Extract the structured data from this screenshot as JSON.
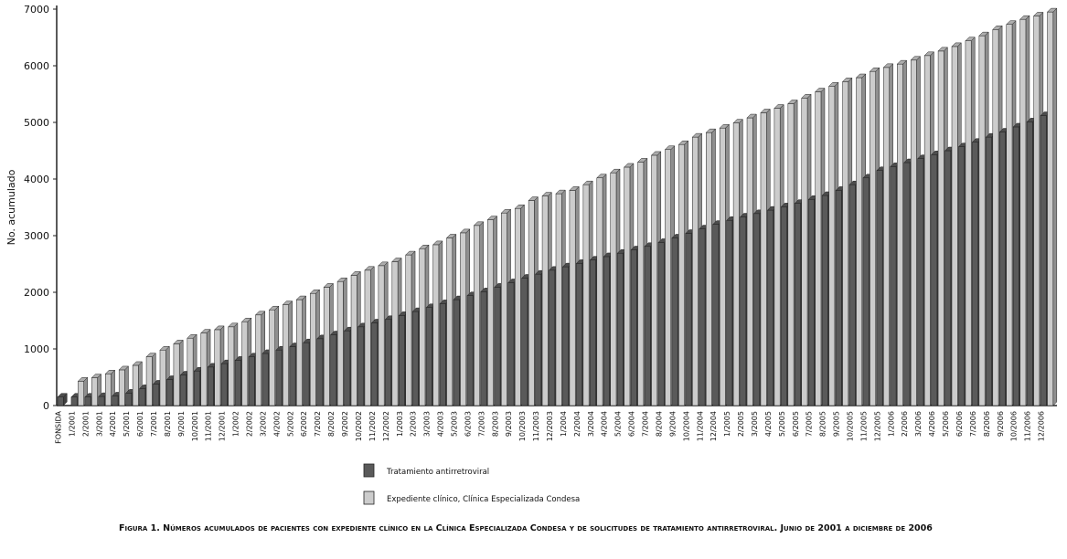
{
  "chart_data": {
    "type": "bar3d",
    "ylabel": "No. acumulado",
    "caption": "Figura 1. Números acumulados de pacientes con expediente clínico en la Clínica Especializada Condesa y de solicitudes de tratamiento antirretroviral. Junio de 2001 a diciembre de 2006",
    "categories": [
      "FONSIDA",
      "1/2001",
      "2/2001",
      "3/2001",
      "4/2001",
      "5/2001",
      "6/2001",
      "7/2001",
      "8/2001",
      "9/2001",
      "10/2001",
      "11/2001",
      "12/2001",
      "1/2002",
      "2/2002",
      "3/2002",
      "4/2002",
      "5/2002",
      "6/2002",
      "7/2002",
      "8/2002",
      "9/2002",
      "10/2002",
      "11/2002",
      "12/2002",
      "1/2003",
      "2/2003",
      "3/2003",
      "4/2003",
      "5/2003",
      "6/2003",
      "7/2003",
      "8/2003",
      "9/2003",
      "10/2003",
      "11/2003",
      "12/2003",
      "1/2004",
      "2/2004",
      "3/2004",
      "4/2004",
      "5/2004",
      "6/2004",
      "7/2004",
      "8/2004",
      "9/2004",
      "10/2004",
      "11/2004",
      "12/2004",
      "1/2005",
      "2/2005",
      "3/2005",
      "4/2005",
      "5/2005",
      "6/2005",
      "7/2005",
      "8/2005",
      "9/2005",
      "10/2005",
      "11/2005",
      "12/2005",
      "1/2006",
      "2/2006",
      "3/2006",
      "4/2006",
      "5/2006",
      "6/2006",
      "7/2006",
      "8/2006",
      "9/2006",
      "10/2006",
      "11/2006",
      "12/2006"
    ],
    "series": [
      {
        "name": "Tratamiento antirretroviral",
        "color": "#5a5a5a",
        "values": [
          150,
          150,
          150,
          160,
          170,
          220,
          300,
          380,
          460,
          540,
          610,
          680,
          740,
          800,
          860,
          920,
          980,
          1040,
          1110,
          1180,
          1250,
          1320,
          1390,
          1460,
          1520,
          1590,
          1660,
          1730,
          1800,
          1870,
          1940,
          2010,
          2090,
          2170,
          2250,
          2320,
          2390,
          2450,
          2510,
          2570,
          2630,
          2690,
          2750,
          2810,
          2880,
          2960,
          3040,
          3120,
          3200,
          3270,
          3330,
          3390,
          3450,
          3510,
          3570,
          3640,
          3710,
          3800,
          3900,
          4020,
          4150,
          4220,
          4290,
          4360,
          4430,
          4500,
          4570,
          4650,
          4740,
          4830,
          4920,
          5010,
          5120
        ]
      },
      {
        "name": "Expediente clínico, Clínica Especializada Condesa",
        "color": "#cccccc",
        "values": [
          null,
          430,
          490,
          560,
          630,
          710,
          860,
          980,
          1090,
          1190,
          1280,
          1340,
          1390,
          1480,
          1600,
          1690,
          1780,
          1870,
          1980,
          2090,
          2190,
          2300,
          2390,
          2470,
          2540,
          2660,
          2770,
          2840,
          2960,
          3050,
          3180,
          3280,
          3400,
          3480,
          3620,
          3700,
          3740,
          3800,
          3900,
          4020,
          4110,
          4210,
          4300,
          4420,
          4520,
          4610,
          4740,
          4820,
          4900,
          4990,
          5080,
          5170,
          5250,
          5330,
          5430,
          5540,
          5640,
          5720,
          5790,
          5900,
          5970,
          6030,
          6100,
          6180,
          6260,
          6340,
          6440,
          6530,
          6640,
          6730,
          6820,
          6880,
          6950
        ]
      }
    ],
    "ylim": [
      0,
      7000
    ],
    "yticks": [
      0,
      1000,
      2000,
      3000,
      4000,
      5000,
      6000,
      7000
    ],
    "grid": false
  }
}
